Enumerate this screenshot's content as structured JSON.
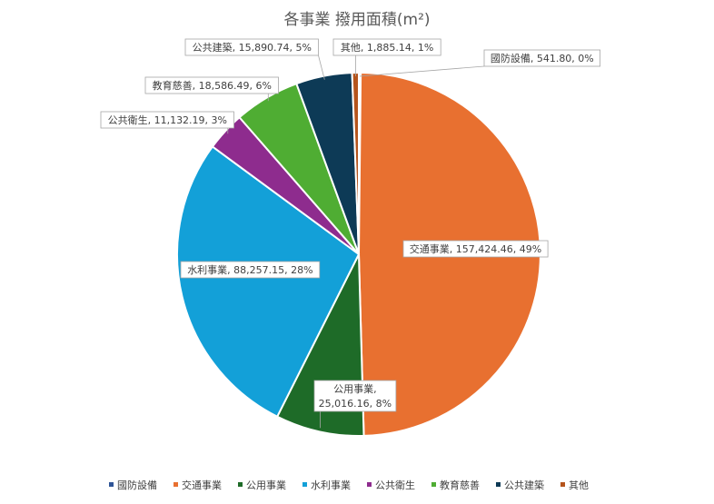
{
  "chart_data": {
    "type": "pie",
    "title": "各事業 撥用面積(m²)",
    "slices": [
      {
        "name": "國防設備",
        "value": 541.8,
        "percent": "0%",
        "label": "國防設備, 541.80, 0%",
        "color": "#2f5597"
      },
      {
        "name": "交通事業",
        "value": 157424.46,
        "percent": "49%",
        "label": "交通事業, 157,424.46, 49%",
        "color": "#e87030"
      },
      {
        "name": "公用事業",
        "value": 25016.16,
        "percent": "8%",
        "label": "公用事業,",
        "label2": "25,016.16, 8%",
        "color": "#1e6b28"
      },
      {
        "name": "水利事業",
        "value": 88257.15,
        "percent": "28%",
        "label": "水利事業, 88,257.15, 28%",
        "color": "#13a0d8"
      },
      {
        "name": "公共衛生",
        "value": 11132.19,
        "percent": "3%",
        "label": "公共衛生, 11,132.19, 3%",
        "color": "#8e2c8e"
      },
      {
        "name": "教育慈善",
        "value": 18586.49,
        "percent": "6%",
        "label": "教育慈善, 18,586.49, 6%",
        "color": "#4fad33"
      },
      {
        "name": "公共建築",
        "value": 15890.74,
        "percent": "5%",
        "label": "公共建築, 15,890.74, 5%",
        "color": "#0d3a56"
      },
      {
        "name": "其他",
        "value": 1885.14,
        "percent": "1%",
        "label": "其他, 1,885.14, 1%",
        "color": "#b5541c"
      }
    ],
    "legend_position": "bottom"
  }
}
